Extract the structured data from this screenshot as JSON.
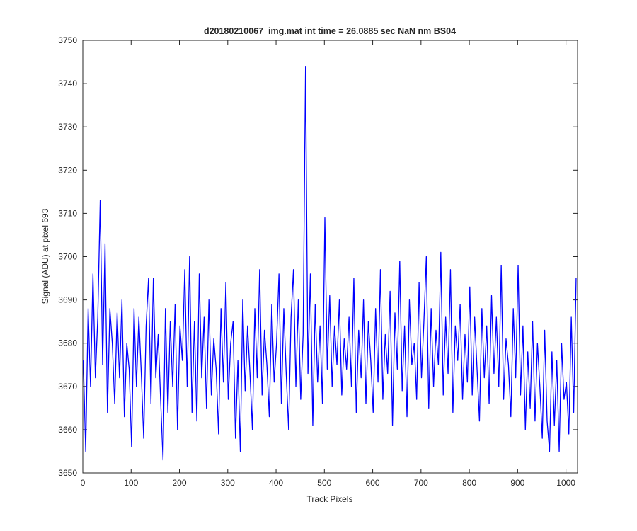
{
  "chart_data": {
    "type": "line",
    "title": "d20180210067_img.mat int time = 26.0885 sec  NaN nm BS04",
    "x_label": "Track Pixels",
    "y_label": "Signal (ADU) at pixel 693",
    "color": "#0000ff",
    "xlim": [
      0,
      1024
    ],
    "ylim": [
      3650,
      3750
    ],
    "xticks": [
      0,
      100,
      200,
      300,
      400,
      500,
      600,
      700,
      800,
      900,
      1000
    ],
    "yticks": [
      3650,
      3660,
      3670,
      3680,
      3690,
      3700,
      3710,
      3720,
      3730,
      3740,
      3750
    ],
    "x": [
      1,
      6,
      11,
      16,
      21,
      26,
      31,
      36,
      41,
      46,
      51,
      56,
      61,
      66,
      71,
      76,
      81,
      86,
      91,
      96,
      101,
      106,
      111,
      116,
      121,
      126,
      131,
      136,
      141,
      146,
      151,
      156,
      161,
      166,
      171,
      176,
      181,
      186,
      191,
      196,
      201,
      206,
      211,
      216,
      221,
      226,
      231,
      236,
      241,
      246,
      251,
      256,
      261,
      266,
      271,
      276,
      281,
      286,
      291,
      296,
      301,
      306,
      311,
      316,
      321,
      326,
      331,
      336,
      341,
      346,
      351,
      356,
      361,
      366,
      371,
      376,
      381,
      386,
      391,
      396,
      401,
      406,
      411,
      416,
      421,
      426,
      431,
      436,
      441,
      446,
      451,
      456,
      461,
      466,
      471,
      476,
      481,
      486,
      491,
      496,
      501,
      506,
      511,
      516,
      521,
      526,
      531,
      536,
      541,
      546,
      551,
      556,
      561,
      566,
      571,
      576,
      581,
      586,
      591,
      596,
      601,
      606,
      611,
      616,
      621,
      626,
      631,
      636,
      641,
      646,
      651,
      656,
      661,
      666,
      671,
      676,
      681,
      686,
      691,
      696,
      701,
      706,
      711,
      716,
      721,
      726,
      731,
      736,
      741,
      746,
      751,
      756,
      761,
      766,
      771,
      776,
      781,
      786,
      791,
      796,
      801,
      806,
      811,
      816,
      821,
      826,
      831,
      836,
      841,
      846,
      851,
      856,
      861,
      866,
      871,
      876,
      881,
      886,
      891,
      896,
      901,
      906,
      911,
      916,
      921,
      926,
      931,
      936,
      941,
      946,
      951,
      956,
      961,
      966,
      971,
      976,
      981,
      986,
      991,
      996,
      1001,
      1006,
      1011,
      1016,
      1021
    ],
    "values": [
      3676,
      3655,
      3688,
      3670,
      3696,
      3672,
      3686,
      3713,
      3675,
      3703,
      3664,
      3688,
      3680,
      3666,
      3687,
      3672,
      3690,
      3663,
      3680,
      3674,
      3656,
      3688,
      3670,
      3686,
      3673,
      3658,
      3684,
      3695,
      3666,
      3695,
      3672,
      3682,
      3667,
      3653,
      3688,
      3664,
      3685,
      3670,
      3689,
      3660,
      3684,
      3676,
      3697,
      3670,
      3700,
      3664,
      3685,
      3662,
      3696,
      3672,
      3686,
      3665,
      3690,
      3668,
      3681,
      3674,
      3659,
      3688,
      3671,
      3694,
      3667,
      3680,
      3685,
      3658,
      3676,
      3655,
      3690,
      3669,
      3684,
      3673,
      3660,
      3688,
      3672,
      3697,
      3668,
      3683,
      3675,
      3663,
      3689,
      3671,
      3680,
      3696,
      3666,
      3688,
      3673,
      3660,
      3686,
      3697,
      3670,
      3690,
      3667,
      3682,
      3744,
      3673,
      3696,
      3661,
      3689,
      3671,
      3684,
      3666,
      3709,
      3674,
      3691,
      3670,
      3684,
      3675,
      3690,
      3668,
      3681,
      3674,
      3686,
      3670,
      3695,
      3664,
      3683,
      3672,
      3690,
      3666,
      3685,
      3676,
      3664,
      3688,
      3671,
      3697,
      3667,
      3682,
      3673,
      3692,
      3661,
      3687,
      3674,
      3699,
      3669,
      3684,
      3663,
      3690,
      3675,
      3680,
      3667,
      3694,
      3672,
      3685,
      3700,
      3665,
      3688,
      3670,
      3683,
      3675,
      3701,
      3668,
      3686,
      3673,
      3697,
      3664,
      3684,
      3676,
      3689,
      3667,
      3682,
      3671,
      3693,
      3668,
      3686,
      3674,
      3662,
      3688,
      3672,
      3684,
      3666,
      3691,
      3673,
      3686,
      3670,
      3698,
      3667,
      3681,
      3675,
      3663,
      3688,
      3672,
      3698,
      3668,
      3684,
      3660,
      3678,
      3665,
      3685,
      3662,
      3680,
      3670,
      3658,
      3683,
      3662,
      3655,
      3678,
      3661,
      3676,
      3655,
      3680,
      3667,
      3671,
      3659,
      3686,
      3664,
      3695
    ]
  }
}
